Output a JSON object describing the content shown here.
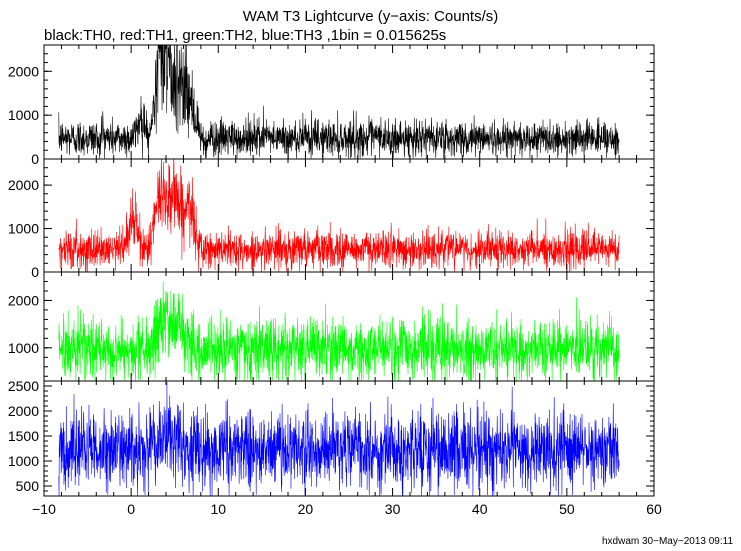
{
  "header": {
    "title": "WAM T3 Lightcurve (y−axis: Counts/s)",
    "subtitle": "black:TH0, red:TH1, green:TH2, blue:TH3 ,1bin = 0.015625s"
  },
  "footer": {
    "stamp": "hxdwam 30−May−2013 09:11"
  },
  "chart_data": {
    "type": "line",
    "x_range": [
      -10,
      60
    ],
    "x_ticks": [
      -10,
      0,
      10,
      20,
      30,
      40,
      50,
      60
    ],
    "x_tick_labels": [
      "−10",
      "0",
      "10",
      "20",
      "30",
      "40",
      "50",
      "60"
    ],
    "data_x_span": [
      -8.3,
      56.0
    ],
    "bin_seconds": 0.015625,
    "grid": false,
    "legend": "none",
    "panels": [
      {
        "series": "TH0",
        "color": "#000000",
        "ylim": [
          0,
          2600
        ],
        "y_ticks": [
          0,
          1000,
          2000
        ],
        "baseline_mean": 480,
        "baseline_noise": 210,
        "burst": [
          {
            "t": 3.2,
            "width": 0.5,
            "amp": 1300
          },
          {
            "t": 4.0,
            "width": 0.6,
            "amp": 1500
          },
          {
            "t": 5.3,
            "width": 0.5,
            "amp": 1300
          },
          {
            "t": 6.5,
            "width": 0.6,
            "amp": 950
          },
          {
            "t": 1.2,
            "width": 0.4,
            "amp": 500
          }
        ],
        "min_clip": 0
      },
      {
        "series": "TH1",
        "color": "#ff0000",
        "ylim": [
          0,
          2600
        ],
        "y_ticks": [
          0,
          1000,
          2000
        ],
        "baseline_mean": 520,
        "baseline_noise": 220,
        "burst": [
          {
            "t": 3.5,
            "width": 0.7,
            "amp": 1250
          },
          {
            "t": 5.0,
            "width": 0.6,
            "amp": 1200
          },
          {
            "t": 6.6,
            "width": 0.6,
            "amp": 950
          },
          {
            "t": 0.2,
            "width": 0.5,
            "amp": 700
          }
        ],
        "min_clip": 0
      },
      {
        "series": "TH2",
        "color": "#00ff00",
        "ylim": [
          300,
          2600
        ],
        "y_ticks": [
          1000,
          2000
        ],
        "baseline_mean": 980,
        "baseline_noise": 320,
        "burst": [
          {
            "t": 3.8,
            "width": 0.8,
            "amp": 550
          },
          {
            "t": 5.6,
            "width": 0.7,
            "amp": 500
          }
        ],
        "min_clip": 300
      },
      {
        "series": "TH3",
        "color": "#0000ff",
        "ylim": [
          300,
          2600
        ],
        "y_ticks": [
          500,
          1000,
          1500,
          2000,
          2500
        ],
        "baseline_mean": 1230,
        "baseline_noise": 380,
        "burst": [
          {
            "t": 4.0,
            "width": 1.0,
            "amp": 220
          }
        ],
        "min_clip": 300
      }
    ]
  }
}
